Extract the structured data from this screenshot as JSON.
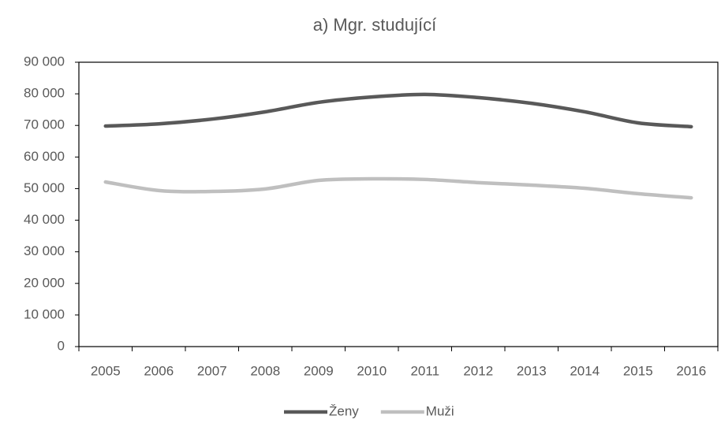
{
  "chart_data": {
    "type": "line",
    "title": "a) Mgr. studující",
    "categories": [
      "2005",
      "2006",
      "2007",
      "2008",
      "2009",
      "2010",
      "2011",
      "2012",
      "2013",
      "2014",
      "2015",
      "2016"
    ],
    "series": [
      {
        "name": "Ženy",
        "color": "#595959",
        "values": [
          69800,
          70500,
          72000,
          74300,
          77300,
          79000,
          79800,
          78800,
          77000,
          74300,
          70800,
          69600
        ]
      },
      {
        "name": "Muži",
        "color": "#bfbfbf",
        "values": [
          52100,
          49400,
          49100,
          49900,
          52600,
          53100,
          52900,
          51900,
          51100,
          50100,
          48400,
          47100
        ]
      }
    ],
    "ylim": [
      0,
      90000
    ],
    "yticks": [
      0,
      {
        "value": 10000,
        "label": "10 000"
      },
      {
        "value": 20000,
        "label": "20 000"
      },
      {
        "value": 30000,
        "label": "30 000"
      },
      {
        "value": 40000,
        "label": "40 000"
      },
      {
        "value": 50000,
        "label": "50 000"
      },
      {
        "value": 60000,
        "label": "60 000"
      },
      {
        "value": 70000,
        "label": "70 000"
      },
      {
        "value": 80000,
        "label": "80 000"
      },
      {
        "value": 90000,
        "label": "90 000"
      }
    ],
    "legend": "bottom"
  }
}
